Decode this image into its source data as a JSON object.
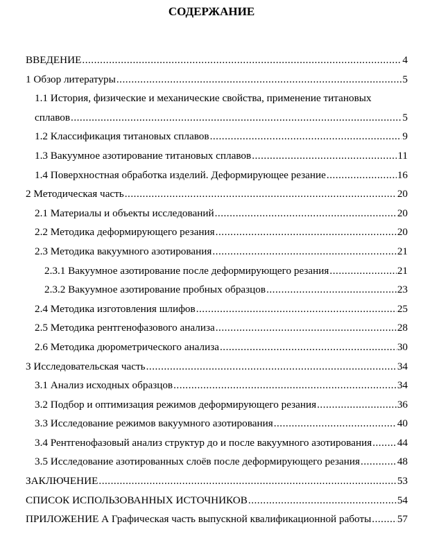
{
  "title": "СОДЕРЖАНИЕ",
  "entries": [
    {
      "text": "ВВЕДЕНИЕ",
      "page": "4",
      "level": 0
    },
    {
      "text": "1 Обзор литературы",
      "page": "5",
      "level": 0
    },
    {
      "text_line1": "1.1  История, физические и механические свойства, применение титановых",
      "text": "сплавов",
      "page": "5",
      "level": 1
    },
    {
      "text": "1.2 Классификация титановых сплавов",
      "page": "9",
      "level": 1
    },
    {
      "text": "1.3 Вакуумное азотирование титановых сплавов",
      "page": "11",
      "level": 1
    },
    {
      "text": "1.4 Поверхностная обработка изделий. Деформирующее резание",
      "page": "16",
      "level": 1
    },
    {
      "text": "2 Методическая часть",
      "page": "20",
      "level": 0
    },
    {
      "text": "2.1 Материалы и объекты исследований",
      "page": "20",
      "level": 1
    },
    {
      "text": "2.2 Методика деформирующего резания",
      "page": "20",
      "level": 1
    },
    {
      "text": "2.3 Методика вакуумного азотирования",
      "page": "21",
      "level": 1
    },
    {
      "text": "2.3.1 Вакуумное азотирование после деформирующего резания",
      "page": "21",
      "level": 2
    },
    {
      "text": "2.3.2 Вакуумное азотирование пробных образцов",
      "page": "23",
      "level": 2
    },
    {
      "text": "2.4 Методика изготовления шлифов",
      "page": "25",
      "level": 1
    },
    {
      "text": "2.5 Методика рентгенофазового анализа",
      "page": "28",
      "level": 1
    },
    {
      "text": "2.6 Методика дюрометрического анализа",
      "page": "30",
      "level": 1
    },
    {
      "text": "3 Исследовательская часть",
      "page": "34",
      "level": 0
    },
    {
      "text": "3.1 Анализ исходных образцов",
      "page": "34",
      "level": 1
    },
    {
      "text": "3.2 Подбор и оптимизация режимов деформирующего резания",
      "page": "36",
      "level": 1
    },
    {
      "text": "3.3 Исследование режимов вакуумного азотирования",
      "page": "40",
      "level": 1
    },
    {
      "text": "3.4 Рентгенофазовый анализ структур до и после вакуумного азотирования",
      "page": "44",
      "level": 1
    },
    {
      "text": "3.5 Исследование азотированных слоёв после деформирующего резания",
      "page": "48",
      "level": 1
    },
    {
      "text": "ЗАКЛЮЧЕНИЕ",
      "page": "53",
      "level": 0
    },
    {
      "text": "СПИСОК ИСПОЛЬЗОВАННЫХ ИСТОЧНИКОВ",
      "page": "54",
      "level": 0
    },
    {
      "text": "ПРИЛОЖЕНИЕ А Графическая часть выпускной квалификационной работы",
      "page": "57",
      "level": 0
    }
  ]
}
